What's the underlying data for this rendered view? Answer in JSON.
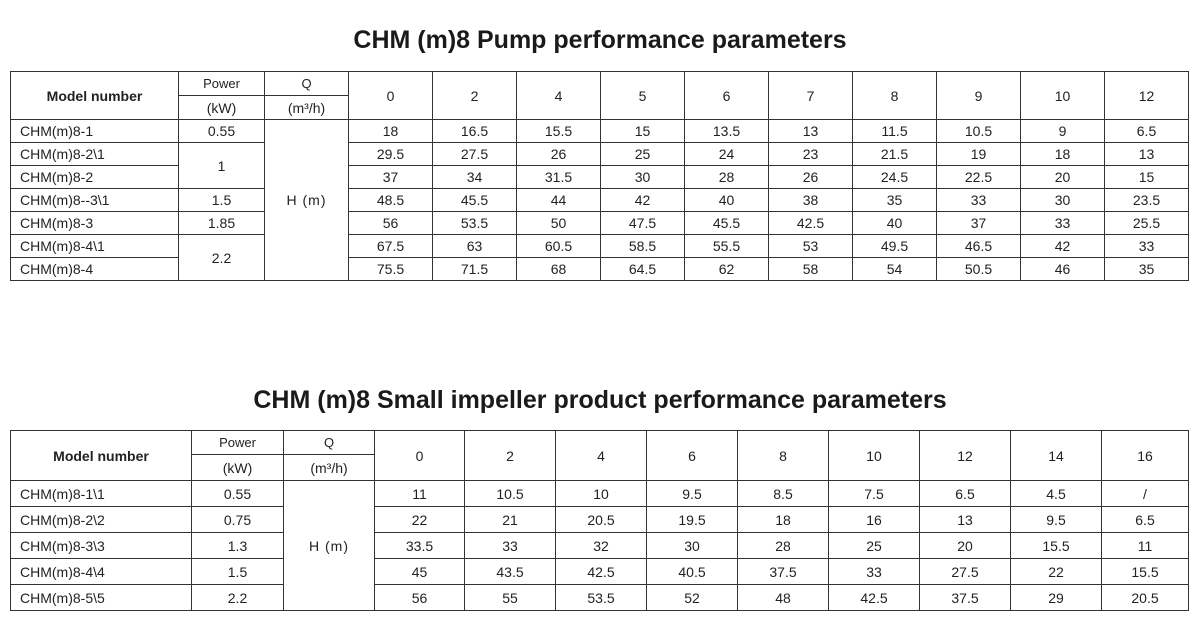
{
  "table1": {
    "title": "CHM (m)8 Pump performance parameters",
    "header": {
      "model": "Model number",
      "power": "Power",
      "power_unit": "(kW)",
      "q": "Q",
      "q_unit": "(m³/h)",
      "head_label": "H (m)"
    },
    "flows": [
      "0",
      "2",
      "4",
      "5",
      "6",
      "7",
      "8",
      "9",
      "10",
      "12"
    ],
    "rows": [
      {
        "model": "CHM(m)8-1",
        "power": "0.55",
        "heads": [
          "18",
          "16.5",
          "15.5",
          "15",
          "13.5",
          "13",
          "11.5",
          "10.5",
          "9",
          "6.5"
        ]
      },
      {
        "model": "CHM(m)8-2\\1",
        "power": "1",
        "heads": [
          "29.5",
          "27.5",
          "26",
          "25",
          "24",
          "23",
          "21.5",
          "19",
          "18",
          "13"
        ]
      },
      {
        "model": "CHM(m)8-2",
        "power": "",
        "heads": [
          "37",
          "34",
          "31.5",
          "30",
          "28",
          "26",
          "24.5",
          "22.5",
          "20",
          "15"
        ]
      },
      {
        "model": "CHM(m)8--3\\1",
        "power": "1.5",
        "heads": [
          "48.5",
          "45.5",
          "44",
          "42",
          "40",
          "38",
          "35",
          "33",
          "30",
          "23.5"
        ]
      },
      {
        "model": "CHM(m)8-3",
        "power": "1.85",
        "heads": [
          "56",
          "53.5",
          "50",
          "47.5",
          "45.5",
          "42.5",
          "40",
          "37",
          "33",
          "25.5"
        ]
      },
      {
        "model": "CHM(m)8-4\\1",
        "power": "2.2",
        "heads": [
          "67.5",
          "63",
          "60.5",
          "58.5",
          "55.5",
          "53",
          "49.5",
          "46.5",
          "42",
          "33"
        ]
      },
      {
        "model": "CHM(m)8-4",
        "power": "",
        "heads": [
          "75.5",
          "71.5",
          "68",
          "64.5",
          "62",
          "58",
          "54",
          "50.5",
          "46",
          "35"
        ]
      }
    ]
  },
  "table2": {
    "title": "CHM (m)8 Small impeller product performance parameters",
    "header": {
      "model": "Model number",
      "power": "Power",
      "power_unit": "(kW)",
      "q": "Q",
      "q_unit": "(m³/h)",
      "head_label": "H (m)"
    },
    "flows": [
      "0",
      "2",
      "4",
      "6",
      "8",
      "10",
      "12",
      "14",
      "16"
    ],
    "rows": [
      {
        "model": "CHM(m)8-1\\1",
        "power": "0.55",
        "heads": [
          "11",
          "10.5",
          "10",
          "9.5",
          "8.5",
          "7.5",
          "6.5",
          "4.5",
          "/"
        ]
      },
      {
        "model": "CHM(m)8-2\\2",
        "power": "0.75",
        "heads": [
          "22",
          "21",
          "20.5",
          "19.5",
          "18",
          "16",
          "13",
          "9.5",
          "6.5"
        ]
      },
      {
        "model": "CHM(m)8-3\\3",
        "power": "1.3",
        "heads": [
          "33.5",
          "33",
          "32",
          "30",
          "28",
          "25",
          "20",
          "15.5",
          "11"
        ]
      },
      {
        "model": "CHM(m)8-4\\4",
        "power": "1.5",
        "heads": [
          "45",
          "43.5",
          "42.5",
          "40.5",
          "37.5",
          "33",
          "27.5",
          "22",
          "15.5"
        ]
      },
      {
        "model": "CHM(m)8-5\\5",
        "power": "2.2",
        "heads": [
          "56",
          "55",
          "53.5",
          "52",
          "48",
          "42.5",
          "37.5",
          "29",
          "20.5"
        ]
      }
    ]
  }
}
